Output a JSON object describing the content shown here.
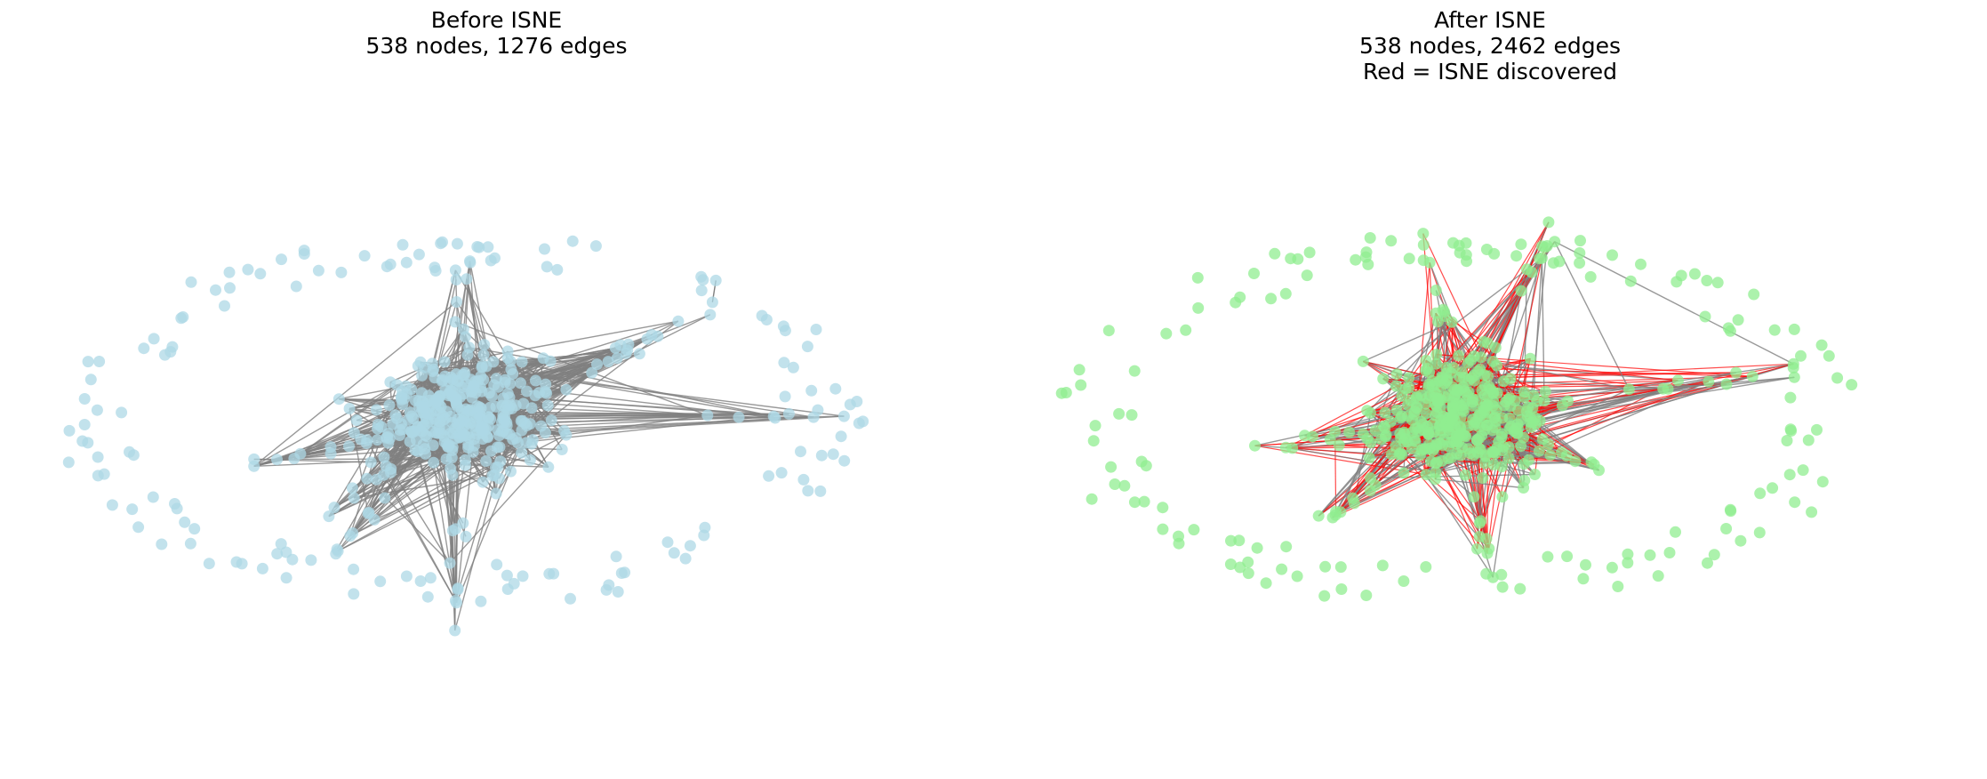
{
  "figure": {
    "panels": [
      {
        "title_lines": [
          "Before ISNE",
          "538 nodes, 1276 edges"
        ]
      },
      {
        "title_lines": [
          "After ISNE",
          "538 nodes, 2462 edges",
          "Red = ISNE discovered"
        ]
      }
    ]
  },
  "colors": {
    "before_node": "#add8e6",
    "after_node": "#90ee90",
    "original_edge": "#808080",
    "discovered_edge": "#ff0000",
    "background": "#ffffff"
  },
  "chart_data": [
    {
      "type": "network",
      "title": "Before ISNE",
      "subtitle": "538 nodes, 1276 edges",
      "nodes": 538,
      "edges": 1276,
      "node_color": "lightblue",
      "edge_color": "gray",
      "axes_visible": false
    },
    {
      "type": "network",
      "title": "After ISNE",
      "subtitle": "538 nodes, 2462 edges",
      "note": "Red = ISNE discovered",
      "nodes": 538,
      "edges": 2462,
      "node_color": "lightgreen",
      "edge_colors": {
        "original": "gray",
        "discovered": "red"
      },
      "axes_visible": false
    }
  ]
}
